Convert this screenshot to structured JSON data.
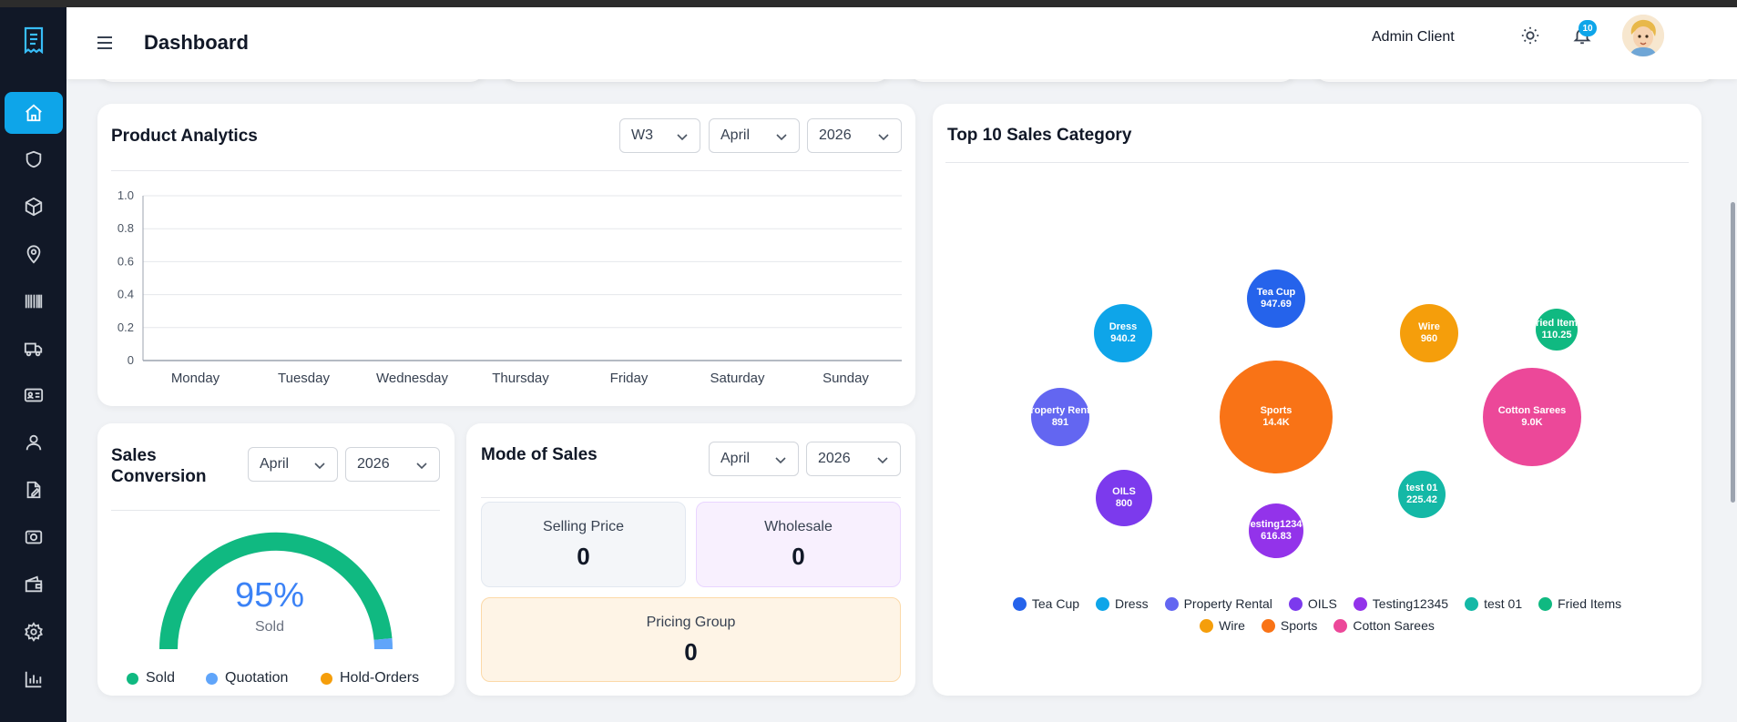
{
  "header": {
    "title": "Dashboard",
    "user_name": "Admin Client",
    "notification_count": "10"
  },
  "sidebar": {
    "items": [
      {
        "icon": "home-icon",
        "active": true
      },
      {
        "icon": "shield-icon"
      },
      {
        "icon": "box-icon"
      },
      {
        "icon": "map-pin-icon"
      },
      {
        "icon": "barcode-icon"
      },
      {
        "icon": "truck-icon"
      },
      {
        "icon": "id-card-icon"
      },
      {
        "icon": "user-icon"
      },
      {
        "icon": "edit-document-icon"
      },
      {
        "icon": "camera-icon"
      },
      {
        "icon": "wallet-icon"
      },
      {
        "icon": "settings-icon"
      },
      {
        "icon": "bar-chart-icon"
      }
    ]
  },
  "product_analytics": {
    "title": "Product Analytics",
    "week": "W3",
    "month": "April",
    "year": "2026",
    "chart_data": {
      "type": "line",
      "categories": [
        "Monday",
        "Tuesday",
        "Wednesday",
        "Thursday",
        "Friday",
        "Saturday",
        "Sunday"
      ],
      "y_ticks": [
        "0",
        "0.2",
        "0.4",
        "0.6",
        "0.8",
        "1.0"
      ],
      "ylim": [
        0,
        1
      ],
      "series": [],
      "grid": true
    }
  },
  "sales_conversion": {
    "title_line1": "Sales",
    "title_line2": "Conversion",
    "month": "April",
    "year": "2026",
    "percent_label": "95%",
    "sub_label": "Sold",
    "chart_data": {
      "type": "pie",
      "categories": [
        "Sold",
        "Quotation",
        "Hold-Orders"
      ],
      "values": [
        95,
        5,
        0
      ],
      "colors": [
        "#10b981",
        "#60a5fa",
        "#f59e0b"
      ],
      "legend": "bottom"
    }
  },
  "mode_of_sales": {
    "title": "Mode of Sales",
    "month": "April",
    "year": "2026",
    "selling_price_label": "Selling Price",
    "selling_price_value": "0",
    "wholesale_label": "Wholesale",
    "wholesale_value": "0",
    "pricing_group_label": "Pricing Group",
    "pricing_group_value": "0"
  },
  "top_sales": {
    "title": "Top 10 Sales Category",
    "chart_data": {
      "type": "scatter",
      "bubbles": [
        {
          "name": "Tea Cup",
          "label": "Tea Cup",
          "value_label": "947.69",
          "color": "#2563eb"
        },
        {
          "name": "Dress",
          "label": "Dress",
          "value_label": "940.2",
          "color": "#0ea5e9"
        },
        {
          "name": "Wire",
          "label": "Wire",
          "value_label": "960",
          "color": "#f59e0b"
        },
        {
          "name": "Fried Items",
          "label": "ried Item",
          "value_label": "110.25",
          "color": "#10b981"
        },
        {
          "name": "Property Rental",
          "label": "roperty Rent",
          "value_label": "891",
          "color": "#6366f1"
        },
        {
          "name": "Sports",
          "label": "Sports",
          "value_label": "14.4K",
          "color": "#f97316"
        },
        {
          "name": "Cotton Sarees",
          "label": "Cotton Sarees",
          "value_label": "9.0K",
          "color": "#ec4899"
        },
        {
          "name": "OILS",
          "label": "OILS",
          "value_label": "800",
          "color": "#7c3aed"
        },
        {
          "name": "test 01",
          "label": "test 01",
          "value_label": "225.42",
          "color": "#14b8a6"
        },
        {
          "name": "Testing12345",
          "label": "esting1234",
          "value_label": "616.83",
          "color": "#9333ea"
        }
      ],
      "legend": [
        "Tea Cup",
        "Dress",
        "Property Rental",
        "OILS",
        "Testing12345",
        "test 01",
        "Fried Items",
        "Wire",
        "Sports",
        "Cotton Sarees"
      ]
    }
  }
}
